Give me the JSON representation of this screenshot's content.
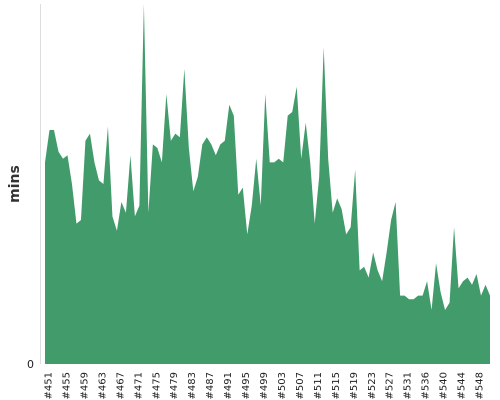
{
  "chart_data": {
    "type": "area",
    "title": "",
    "xlabel": "",
    "ylabel": "mins",
    "y_tick_labels": [
      "0"
    ],
    "ylim": [
      0,
      100
    ],
    "grid": false,
    "legend": "none",
    "color": "#419B6A",
    "x_tick_labels": [
      "#451",
      "#455",
      "#459",
      "#463",
      "#467",
      "#471",
      "#475",
      "#479",
      "#483",
      "#487",
      "#491",
      "#495",
      "#499",
      "#503",
      "#507",
      "#511",
      "#515",
      "#519",
      "#523",
      "#527",
      "#531",
      "#536",
      "#540",
      "#544",
      "#548"
    ],
    "x": [
      451,
      452,
      453,
      454,
      455,
      456,
      457,
      458,
      459,
      460,
      461,
      462,
      463,
      464,
      465,
      466,
      467,
      468,
      469,
      470,
      471,
      472,
      473,
      474,
      475,
      476,
      477,
      478,
      479,
      480,
      481,
      482,
      483,
      484,
      485,
      486,
      487,
      488,
      489,
      490,
      491,
      492,
      493,
      494,
      495,
      496,
      497,
      498,
      499,
      500,
      501,
      502,
      503,
      504,
      505,
      506,
      507,
      508,
      509,
      510,
      511,
      512,
      513,
      514,
      515,
      516,
      517,
      518,
      519,
      520,
      521,
      522,
      523,
      524,
      525,
      526,
      527,
      528,
      529,
      530,
      531,
      532,
      533,
      534,
      535,
      536,
      537,
      538,
      539,
      540,
      541,
      542,
      543,
      544,
      545,
      546,
      547,
      548,
      549,
      550
    ],
    "values": [
      56,
      65,
      65,
      59,
      57,
      58,
      50,
      39,
      40,
      62,
      64,
      56,
      51,
      50,
      66,
      41,
      37,
      45,
      42,
      58,
      41,
      44,
      100,
      42,
      61,
      60,
      56,
      75,
      62,
      64,
      63,
      82,
      60,
      48,
      52,
      61,
      63,
      61,
      58,
      61,
      62,
      72,
      69,
      47,
      49,
      36,
      44,
      57,
      44,
      75,
      56,
      56,
      57,
      56,
      69,
      70,
      77,
      57,
      67,
      56,
      39,
      52,
      88,
      57,
      42,
      46,
      43,
      36,
      38,
      54,
      26,
      27,
      24,
      31,
      26,
      23,
      31,
      40,
      45,
      19,
      19,
      18,
      18,
      19,
      19,
      23,
      15,
      28,
      20,
      15,
      17,
      38,
      21,
      23,
      24,
      22,
      25,
      19,
      22,
      19
    ]
  }
}
